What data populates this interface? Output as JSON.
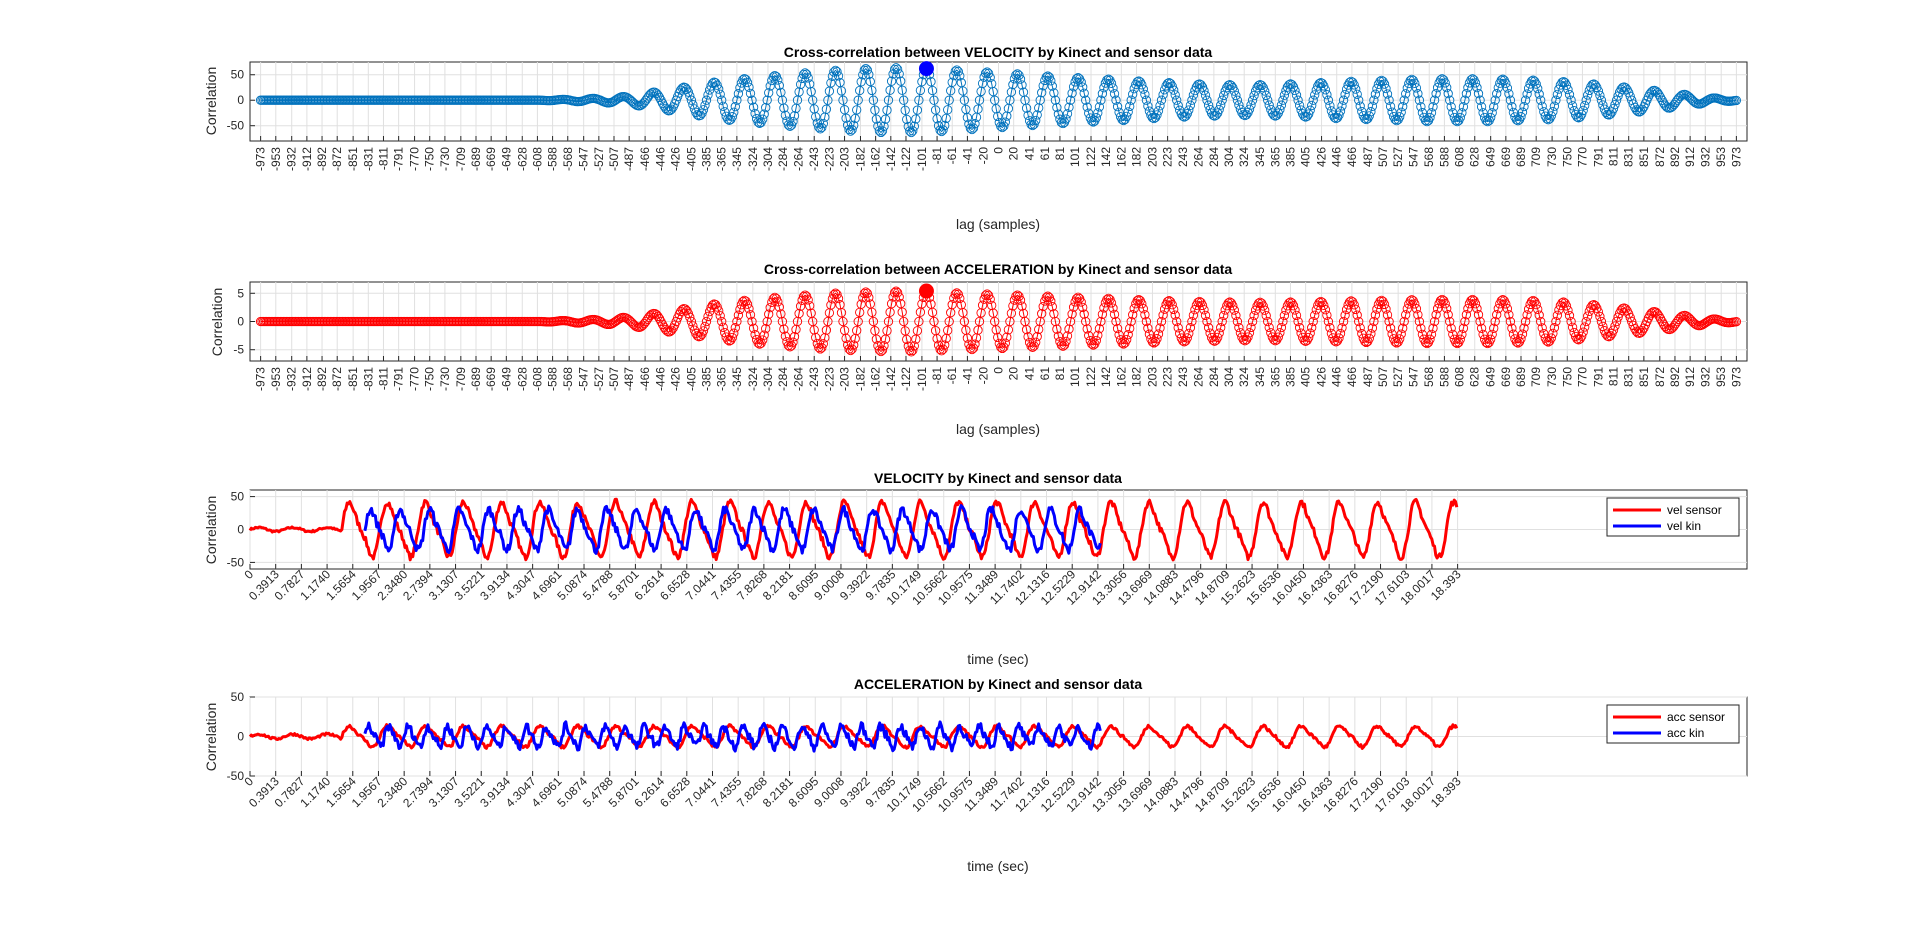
{
  "chart_data": [
    {
      "type": "line",
      "title": "Cross-correlation between VELOCITY by Kinect and sensor data",
      "xlabel": "lag (samples)",
      "ylabel": "Correlation",
      "ylim": [
        -80,
        75
      ],
      "yticks": [
        -50,
        0,
        50
      ],
      "xlim": [
        -987,
        987
      ],
      "xticklabels": [
        "-973",
        "-953",
        "-932",
        "-912",
        "-892",
        "-872",
        "-851",
        "-831",
        "-811",
        "-791",
        "-770",
        "-750",
        "-730",
        "-709",
        "-689",
        "-669",
        "-649",
        "-628",
        "-608",
        "-588",
        "-568",
        "-547",
        "-527",
        "-507",
        "-487",
        "-466",
        "-446",
        "-426",
        "-405",
        "-385",
        "-365",
        "-345",
        "-324",
        "-304",
        "-284",
        "-264",
        "-243",
        "-223",
        "-203",
        "-182",
        "-162",
        "-142",
        "-122",
        "-101",
        "-81",
        "-61",
        "-41",
        "-20",
        "0",
        "20",
        "41",
        "61",
        "81",
        "101",
        "122",
        "142",
        "162",
        "182",
        "203",
        "223",
        "243",
        "264",
        "284",
        "304",
        "324",
        "345",
        "365",
        "385",
        "405",
        "426",
        "446",
        "466",
        "487",
        "507",
        "527",
        "547",
        "568",
        "588",
        "608",
        "628",
        "649",
        "669",
        "689",
        "709",
        "730",
        "750",
        "770",
        "791",
        "811",
        "831",
        "851",
        "872",
        "892",
        "912",
        "932",
        "953",
        "973"
      ],
      "series": [
        {
          "color": "#0072BD",
          "marker": "circle",
          "envelope": {
            "lags": [
              -973,
              -608,
              -568,
              -527,
              -487,
              -446,
              -405,
              -365,
              -324,
              -284,
              -243,
              -203,
              -162,
              -122,
              -101,
              -81,
              -41,
              0,
              41,
              81,
              122,
              162,
              203,
              243,
              284,
              324,
              365,
              405,
              446,
              487,
              527,
              568,
              608,
              649,
              689,
              730,
              770,
              811,
              851,
              892,
              932,
              973
            ],
            "amplitude": [
              0,
              0,
              2,
              4,
              8,
              18,
              28,
              38,
              44,
              50,
              55,
              60,
              63,
              64,
              62,
              62,
              58,
              54,
              50,
              46,
              43,
              40,
              36,
              33,
              31,
              30,
              31,
              33,
              36,
              38,
              40,
              42,
              42,
              42,
              40,
              38,
              34,
              28,
              22,
              14,
              6,
              1
            ]
          },
          "period_samples": 40
        }
      ],
      "peak": {
        "lag": -95,
        "value": 62,
        "color": "#0000FF"
      },
      "grid": true
    },
    {
      "type": "line",
      "title": "Cross-correlation between ACCELERATION by Kinect and sensor data",
      "xlabel": "lag (samples)",
      "ylabel": "Correlation",
      "ylim": [
        -7,
        7
      ],
      "yticks": [
        -5,
        0,
        5
      ],
      "xlim": [
        -987,
        987
      ],
      "xticklabels": [
        "-973",
        "-953",
        "-932",
        "-912",
        "-892",
        "-872",
        "-851",
        "-831",
        "-811",
        "-791",
        "-770",
        "-750",
        "-730",
        "-709",
        "-689",
        "-669",
        "-649",
        "-628",
        "-608",
        "-588",
        "-568",
        "-547",
        "-527",
        "-507",
        "-487",
        "-466",
        "-446",
        "-426",
        "-405",
        "-385",
        "-365",
        "-345",
        "-324",
        "-304",
        "-284",
        "-264",
        "-243",
        "-223",
        "-203",
        "-182",
        "-162",
        "-142",
        "-122",
        "-101",
        "-81",
        "-61",
        "-41",
        "-20",
        "0",
        "20",
        "41",
        "61",
        "81",
        "101",
        "122",
        "142",
        "162",
        "182",
        "203",
        "223",
        "243",
        "264",
        "284",
        "304",
        "324",
        "345",
        "365",
        "385",
        "405",
        "426",
        "446",
        "466",
        "487",
        "507",
        "527",
        "547",
        "568",
        "588",
        "608",
        "628",
        "649",
        "669",
        "689",
        "709",
        "730",
        "750",
        "770",
        "791",
        "811",
        "831",
        "851",
        "872",
        "892",
        "912",
        "932",
        "953",
        "973"
      ],
      "series": [
        {
          "color": "#FF0000",
          "marker": "circle",
          "envelope": {
            "lags": [
              -973,
              -608,
              -568,
              -527,
              -487,
              -446,
              -405,
              -365,
              -324,
              -284,
              -243,
              -203,
              -162,
              -122,
              -101,
              -81,
              -41,
              0,
              41,
              81,
              122,
              162,
              203,
              243,
              284,
              324,
              365,
              405,
              446,
              487,
              527,
              568,
              608,
              649,
              689,
              730,
              770,
              811,
              851,
              892,
              932,
              973
            ],
            "amplitude": [
              0,
              0,
              0.2,
              0.4,
              0.8,
              1.6,
              2.5,
              3.3,
              3.9,
              4.4,
              4.8,
              5.1,
              5.3,
              5.4,
              5.3,
              5.2,
              5,
              4.8,
              4.6,
              4.4,
              4.2,
              4,
              3.8,
              3.6,
              3.5,
              3.4,
              3.4,
              3.5,
              3.6,
              3.7,
              3.8,
              3.9,
              3.9,
              3.9,
              3.8,
              3.6,
              3.2,
              2.6,
              2,
              1.3,
              0.6,
              0.1
            ]
          },
          "period_samples": 40
        }
      ],
      "peak": {
        "lag": -95,
        "value": 5.4,
        "color": "#FF0000"
      },
      "grid": true
    },
    {
      "type": "line",
      "title": "VELOCITY by Kinect and sensor data",
      "xlabel": "time (sec)",
      "ylabel": "Correlation",
      "ylim": [
        -60,
        60
      ],
      "yticks": [
        -50,
        0,
        50
      ],
      "xlim": [
        0,
        22.8
      ],
      "xticklabels": [
        "0",
        "0.3913",
        "0.7827",
        "1.1740",
        "1.5654",
        "1.9567",
        "2.3480",
        "2.7394",
        "3.1307",
        "3.5221",
        "3.9134",
        "4.3047",
        "4.6961",
        "5.0874",
        "5.4788",
        "5.8701",
        "6.2614",
        "6.6528",
        "7.0441",
        "7.4355",
        "7.8268",
        "8.2181",
        "8.6095",
        "9.0008",
        "9.3922",
        "9.7835",
        "10.1749",
        "10.5662",
        "10.9575",
        "11.3489",
        "11.7402",
        "12.1316",
        "12.5229",
        "12.9142",
        "13.3056",
        "13.6969",
        "14.0883",
        "14.4796",
        "14.8709",
        "15.2623",
        "15.6536",
        "16.0450",
        "16.4363",
        "16.8276",
        "17.2190",
        "17.6103",
        "18.0017",
        "18.393"
      ],
      "series": [
        {
          "name": "vel sensor",
          "color": "#FF0000",
          "t_start": 0,
          "t_end": 18.393,
          "active_from": 1.4,
          "period": 0.58,
          "amplitude": 38,
          "noise": 0.25
        },
        {
          "name": "vel kin",
          "color": "#0000FF",
          "t_start": 1.75,
          "t_end": 12.95,
          "active_from": 1.75,
          "period": 0.45,
          "amplitude": 28,
          "noise": 0.45
        }
      ],
      "legend": "top-right",
      "grid": true
    },
    {
      "type": "line",
      "title": "ACCELERATION by Kinect and sensor data",
      "xlabel": "time (sec)",
      "ylabel": "Correlation",
      "ylim": [
        -50,
        50
      ],
      "yticks": [
        -50,
        0,
        50
      ],
      "xlim": [
        0,
        22.8
      ],
      "xticklabels": [
        "0",
        "0.3913",
        "0.7827",
        "1.1740",
        "1.5654",
        "1.9567",
        "2.3480",
        "2.7394",
        "3.1307",
        "3.5221",
        "3.9134",
        "4.3047",
        "4.6961",
        "5.0874",
        "5.4788",
        "5.8701",
        "6.2614",
        "6.6528",
        "7.0441",
        "7.4355",
        "7.8268",
        "8.2181",
        "8.6095",
        "9.0008",
        "9.3922",
        "9.7835",
        "10.1749",
        "10.5662",
        "10.9575",
        "11.3489",
        "11.7402",
        "12.1316",
        "12.5229",
        "12.9142",
        "13.3056",
        "13.6969",
        "14.0883",
        "14.4796",
        "14.8709",
        "15.2623",
        "15.6536",
        "16.0450",
        "16.4363",
        "16.8276",
        "17.2190",
        "17.6103",
        "18.0017",
        "18.393"
      ],
      "series": [
        {
          "name": "acc sensor",
          "color": "#FF0000",
          "t_start": 0,
          "t_end": 18.393,
          "active_from": 1.4,
          "period": 0.58,
          "amplitude": 12,
          "noise": 0.35
        },
        {
          "name": "acc kin",
          "color": "#0000FF",
          "t_start": 1.75,
          "t_end": 12.95,
          "active_from": 1.75,
          "period": 0.3,
          "amplitude": 12,
          "noise": 0.9
        }
      ],
      "legend": "top-right",
      "grid": true
    }
  ]
}
